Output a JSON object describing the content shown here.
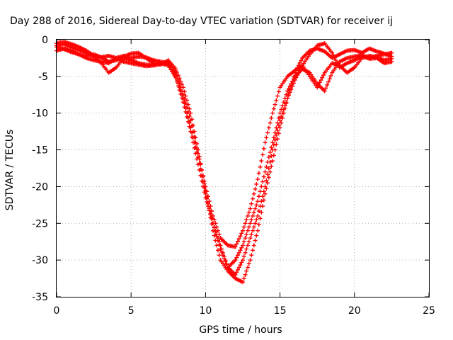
{
  "chart_data": {
    "type": "scatter",
    "title": "Day 288 of 2016, Sidereal Day-to-day VTEC variation (SDTVAR) for receiver ij",
    "xlabel": "GPS time / hours",
    "ylabel": "SDTVAR / TECUs",
    "xlim": [
      0,
      25
    ],
    "ylim": [
      -35,
      0
    ],
    "xticks": [
      0,
      5,
      10,
      15,
      20,
      25
    ],
    "yticks": [
      0,
      -5,
      -10,
      -15,
      -20,
      -25,
      -30,
      -35
    ],
    "xtick_labels": [
      "0",
      "5",
      "10",
      "15",
      "20",
      "25"
    ],
    "ytick_labels": [
      "0",
      "-5",
      "-10",
      "-15",
      "-20",
      "-25",
      "-30",
      "-35"
    ],
    "grid": true,
    "marker": "+",
    "color": "#ff0000",
    "series": [
      {
        "x": [
          0,
          0.5,
          1,
          1.5,
          2,
          2.5,
          3,
          3.5,
          4,
          4.5,
          5,
          5.5,
          6,
          6.5,
          7,
          7.5,
          8,
          8.5,
          9,
          9.5,
          10,
          10.5,
          11,
          11.5,
          12,
          12.5,
          13,
          13.5,
          14,
          14.5,
          15,
          15.5,
          16,
          16.5,
          17,
          17.5,
          18,
          18.5,
          19,
          19.5,
          20,
          20.5,
          21,
          21.5,
          22,
          22.5
        ],
        "y": [
          -1.5,
          -1.2,
          -1.5,
          -2,
          -2.5,
          -2.8,
          -3,
          -3.2,
          -2.5,
          -2.2,
          -2.5,
          -2.3,
          -2.4,
          -2.8,
          -3,
          -3.2,
          -5,
          -8,
          -12,
          -16,
          -21,
          -25,
          -28,
          -31,
          -32,
          -30,
          -27,
          -24,
          -20,
          -15,
          -11,
          -8,
          -5.5,
          -3.5,
          -2,
          -0.8,
          -0.5,
          -1.8,
          -3.8,
          -3.2,
          -2.8,
          -2.2,
          -2.6,
          -2.5,
          -3.2,
          -3
        ]
      },
      {
        "x": [
          0,
          0.5,
          1,
          1.5,
          2,
          2.5,
          3,
          3.5,
          4,
          4.5,
          5,
          5.5,
          6,
          6.5,
          7,
          7.5,
          8,
          8.5,
          9,
          9.5,
          10,
          10.5,
          11,
          11.5,
          12,
          12.5,
          13,
          13.5,
          14,
          14.5,
          15,
          15.5,
          16,
          16.5,
          17,
          17.5,
          18,
          18.5,
          19,
          19.5,
          20,
          20.5,
          21,
          21.5,
          22,
          22.5
        ],
        "y": [
          -0.8,
          -0.6,
          -1,
          -1.4,
          -1.8,
          -2.3,
          -3.2,
          -4.5,
          -3.8,
          -2.5,
          -2.8,
          -3.2,
          -3.4,
          -3.5,
          -3.3,
          -3.1,
          -4.5,
          -7.5,
          -11,
          -15.5,
          -20,
          -24,
          -27,
          -28,
          -28.2,
          -26,
          -23,
          -19,
          -14,
          -10,
          -6.5,
          -5,
          -4.2,
          -3.5,
          -5,
          -6.5,
          -4.5,
          -3.2,
          -3.5,
          -4.5,
          -3.8,
          -2.5,
          -2.2,
          -2.4,
          -2.8,
          -2.6
        ]
      },
      {
        "x": [
          0,
          0.5,
          1,
          1.5,
          2,
          2.5,
          3,
          3.5,
          4,
          4.5,
          5,
          5.5,
          6,
          6.5,
          7,
          7.5,
          8,
          8.5,
          9,
          9.5,
          10,
          10.5,
          11,
          11.5,
          12,
          12.5,
          13,
          13.5,
          14,
          14.5,
          15,
          15.5,
          16,
          16.5,
          17,
          17.5,
          18,
          18.5,
          19,
          19.5,
          20,
          20.5,
          21,
          21.5,
          22,
          22.5
        ],
        "y": [
          -1,
          -1.3,
          -1.7,
          -2,
          -2.2,
          -2,
          -2.4,
          -3,
          -2.8,
          -2.3,
          -1.9,
          -1.8,
          -2.5,
          -3.2,
          -3.4,
          -2.8,
          -4,
          -6.5,
          -10,
          -15,
          -20.5,
          -26,
          -30,
          -31.5,
          -32.5,
          -33,
          -30,
          -26,
          -21,
          -16.5,
          -12,
          -8,
          -4.5,
          -2.5,
          -1.5,
          -1.2,
          -1.6,
          -2.5,
          -2,
          -1.5,
          -1.4,
          -1.8,
          -1.2,
          -1.6,
          -1.9,
          -2.3
        ]
      },
      {
        "x": [
          0,
          0.5,
          1,
          1.5,
          2,
          2.5,
          3,
          3.5,
          4,
          4.5,
          5,
          5.5,
          6,
          6.5,
          7,
          7.5,
          8,
          8.5,
          9,
          9.5,
          10,
          10.5,
          11,
          11.5,
          12,
          12.5,
          13,
          13.5,
          14,
          14.5,
          15,
          15.5,
          16,
          16.5,
          17,
          17.5,
          18,
          18.5,
          19,
          19.5,
          20,
          20.5,
          21,
          21.5,
          22,
          22.5
        ],
        "y": [
          -0.5,
          -0.3,
          -0.6,
          -1,
          -1.5,
          -2.2,
          -2.4,
          -2.2,
          -2.5,
          -3,
          -3.2,
          -3.4,
          -3.6,
          -3.5,
          -3.2,
          -3.5,
          -5.2,
          -8.5,
          -12.5,
          -17,
          -21.5,
          -25,
          -28.5,
          -31,
          -30,
          -28,
          -25,
          -22,
          -18,
          -14,
          -10,
          -7,
          -5,
          -4,
          -4.5,
          -6,
          -7,
          -4.5,
          -3,
          -2.5,
          -2.3,
          -2.1,
          -2.5,
          -2.2,
          -2,
          -1.8
        ]
      }
    ]
  }
}
